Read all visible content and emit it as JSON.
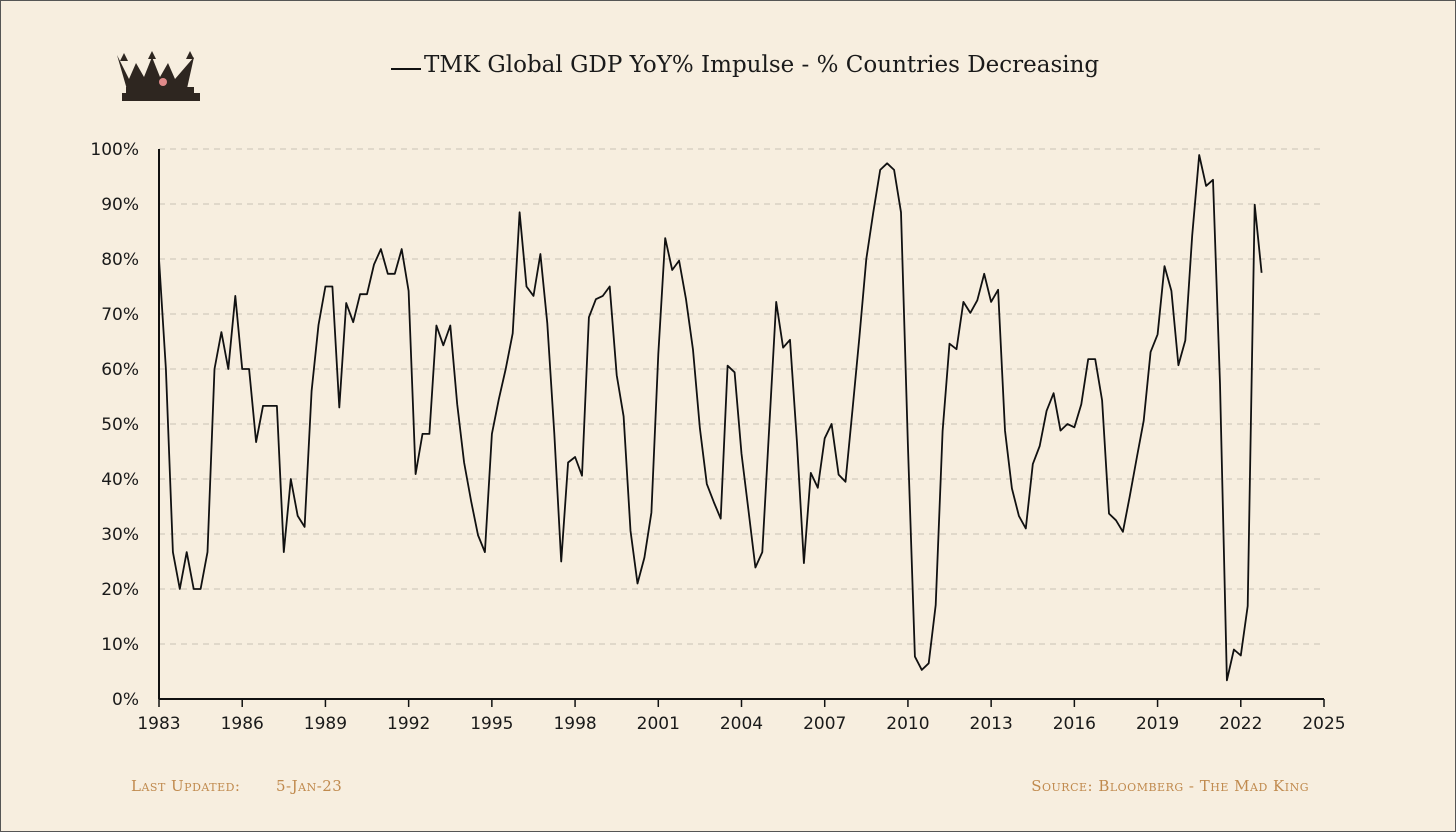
{
  "colors": {
    "background": "#f7eedf",
    "line": "#111111",
    "grid": "#c9c2b5",
    "footer_text": "#c08a4e",
    "crown": "#2e2620",
    "crown_gem": "#e08a8a"
  },
  "header": {
    "logo_icon": "crown-icon",
    "title": "TMK Global GDP YoY% Impulse - % Countries Decreasing"
  },
  "footer": {
    "last_updated_label": "Last Updated:",
    "last_updated_value": "5-Jan-23",
    "source": "Source: Bloomberg - The Mad King"
  },
  "chart_data": {
    "type": "line",
    "title": "TMK Global GDP YoY% Impulse - % Countries Decreasing",
    "xlabel": "",
    "ylabel": "",
    "xlim": [
      1983,
      2025
    ],
    "ylim": [
      0,
      100
    ],
    "x_ticks": [
      "1983",
      "1986",
      "1989",
      "1992",
      "1995",
      "1998",
      "2001",
      "2004",
      "2007",
      "2010",
      "2013",
      "2016",
      "2019",
      "2022",
      "2025"
    ],
    "y_ticks": [
      "0%",
      "10%",
      "20%",
      "30%",
      "40%",
      "50%",
      "60%",
      "70%",
      "80%",
      "90%",
      "100%"
    ],
    "grid": true,
    "legend": "top-center",
    "series": [
      {
        "name": "TMK Global GDP YoY% Impulse - % Countries Decreasing",
        "points": [
          [
            1983.0,
            80
          ],
          [
            1983.25,
            60
          ],
          [
            1983.5,
            26.7
          ],
          [
            1983.75,
            20
          ],
          [
            1984.0,
            26.7
          ],
          [
            1984.25,
            20
          ],
          [
            1984.5,
            20
          ],
          [
            1984.75,
            26.7
          ],
          [
            1985.0,
            60
          ],
          [
            1985.25,
            66.7
          ],
          [
            1985.5,
            60
          ],
          [
            1985.75,
            73.3
          ],
          [
            1986.0,
            60
          ],
          [
            1986.25,
            60
          ],
          [
            1986.5,
            46.7
          ],
          [
            1986.75,
            53.3
          ],
          [
            1987.0,
            53.3
          ],
          [
            1987.25,
            53.3
          ],
          [
            1987.5,
            26.7
          ],
          [
            1987.75,
            40
          ],
          [
            1988.0,
            33.3
          ],
          [
            1988.25,
            31.3
          ],
          [
            1988.5,
            56
          ],
          [
            1988.75,
            68
          ],
          [
            1989.0,
            75
          ],
          [
            1989.25,
            75
          ],
          [
            1989.5,
            53
          ],
          [
            1989.75,
            72
          ],
          [
            1990.0,
            68.5
          ],
          [
            1990.25,
            73.6
          ],
          [
            1990.5,
            73.6
          ],
          [
            1990.75,
            79
          ],
          [
            1991.0,
            81.8
          ],
          [
            1991.25,
            77.3
          ],
          [
            1991.5,
            77.3
          ],
          [
            1991.75,
            81.8
          ],
          [
            1992.0,
            74.2
          ],
          [
            1992.25,
            40.9
          ],
          [
            1992.5,
            48.2
          ],
          [
            1992.75,
            48.2
          ],
          [
            1993.0,
            67.9
          ],
          [
            1993.25,
            64.3
          ],
          [
            1993.5,
            67.9
          ],
          [
            1993.75,
            53.6
          ],
          [
            1994.0,
            43
          ],
          [
            1994.25,
            36
          ],
          [
            1994.5,
            29.8
          ],
          [
            1994.75,
            26.7
          ],
          [
            1995.0,
            48.2
          ],
          [
            1995.25,
            54.5
          ],
          [
            1995.5,
            60
          ],
          [
            1995.75,
            66.5
          ],
          [
            1996.0,
            88.5
          ],
          [
            1996.25,
            75
          ],
          [
            1996.5,
            73.3
          ],
          [
            1996.75,
            80.9
          ],
          [
            1997.0,
            68.3
          ],
          [
            1997.25,
            48.3
          ],
          [
            1997.5,
            25
          ],
          [
            1997.75,
            43
          ],
          [
            1998.0,
            44
          ],
          [
            1998.25,
            40.6
          ],
          [
            1998.5,
            69.4
          ],
          [
            1998.75,
            72.7
          ],
          [
            1999.0,
            73.3
          ],
          [
            1999.25,
            75
          ],
          [
            1999.5,
            58.9
          ],
          [
            1999.75,
            51.4
          ],
          [
            2000.0,
            30.6
          ],
          [
            2000.25,
            21
          ],
          [
            2000.5,
            25.7
          ],
          [
            2000.75,
            33.9
          ],
          [
            2001.0,
            62.7
          ],
          [
            2001.25,
            83.8
          ],
          [
            2001.5,
            78
          ],
          [
            2001.75,
            79.7
          ],
          [
            2002.0,
            72.7
          ],
          [
            2002.25,
            63.5
          ],
          [
            2002.5,
            49.2
          ],
          [
            2002.75,
            39.1
          ],
          [
            2003.0,
            35.8
          ],
          [
            2003.25,
            32.8
          ],
          [
            2003.5,
            60.6
          ],
          [
            2003.75,
            59.4
          ],
          [
            2004.0,
            44.6
          ],
          [
            2004.25,
            34.4
          ],
          [
            2004.5,
            23.9
          ],
          [
            2004.75,
            26.7
          ],
          [
            2005.0,
            49.3
          ],
          [
            2005.25,
            72.2
          ],
          [
            2005.5,
            63.9
          ],
          [
            2005.75,
            65.3
          ],
          [
            2006.0,
            46.6
          ],
          [
            2006.25,
            24.7
          ],
          [
            2006.5,
            41.1
          ],
          [
            2006.75,
            38.4
          ],
          [
            2007.0,
            47.4
          ],
          [
            2007.25,
            50
          ],
          [
            2007.5,
            40.8
          ],
          [
            2007.75,
            39.5
          ],
          [
            2008.0,
            52.6
          ],
          [
            2008.25,
            65.8
          ],
          [
            2008.5,
            80
          ],
          [
            2008.75,
            88.5
          ],
          [
            2009.0,
            96.2
          ],
          [
            2009.25,
            97.4
          ],
          [
            2009.5,
            96.2
          ],
          [
            2009.75,
            88.5
          ],
          [
            2010.0,
            46.2
          ],
          [
            2010.25,
            7.7
          ],
          [
            2010.5,
            5.3
          ],
          [
            2010.75,
            6.5
          ],
          [
            2011.0,
            17.1
          ],
          [
            2011.25,
            48.7
          ],
          [
            2011.5,
            64.6
          ],
          [
            2011.75,
            63.6
          ],
          [
            2012.0,
            72.2
          ],
          [
            2012.25,
            70.2
          ],
          [
            2012.5,
            72.5
          ],
          [
            2012.75,
            77.3
          ],
          [
            2013.0,
            72.2
          ],
          [
            2013.25,
            74.4
          ],
          [
            2013.5,
            48.8
          ],
          [
            2013.75,
            38.3
          ],
          [
            2014.0,
            33.3
          ],
          [
            2014.25,
            31
          ],
          [
            2014.5,
            42.7
          ],
          [
            2014.75,
            46
          ],
          [
            2015.0,
            52.4
          ],
          [
            2015.25,
            55.6
          ],
          [
            2015.5,
            48.8
          ],
          [
            2015.75,
            50
          ],
          [
            2016.0,
            49.4
          ],
          [
            2016.25,
            53.6
          ],
          [
            2016.5,
            61.8
          ],
          [
            2016.75,
            61.8
          ],
          [
            2017.0,
            54.3
          ],
          [
            2017.25,
            33.7
          ],
          [
            2017.5,
            32.5
          ],
          [
            2017.75,
            30.4
          ],
          [
            2018.0,
            36.9
          ],
          [
            2018.25,
            43.9
          ],
          [
            2018.5,
            50.6
          ],
          [
            2018.75,
            63.1
          ],
          [
            2019.0,
            66.3
          ],
          [
            2019.25,
            78.7
          ],
          [
            2019.5,
            74.2
          ],
          [
            2019.75,
            60.7
          ],
          [
            2020.0,
            65.2
          ],
          [
            2020.25,
            84.3
          ],
          [
            2020.5,
            98.9
          ],
          [
            2020.75,
            93.3
          ],
          [
            2021.0,
            94.4
          ],
          [
            2021.25,
            57.3
          ],
          [
            2021.5,
            3.4
          ],
          [
            2021.75,
            9
          ],
          [
            2022.0,
            7.9
          ],
          [
            2022.25,
            16.9
          ],
          [
            2022.5,
            89.9
          ],
          [
            2022.75,
            77.5
          ]
        ]
      }
    ]
  }
}
